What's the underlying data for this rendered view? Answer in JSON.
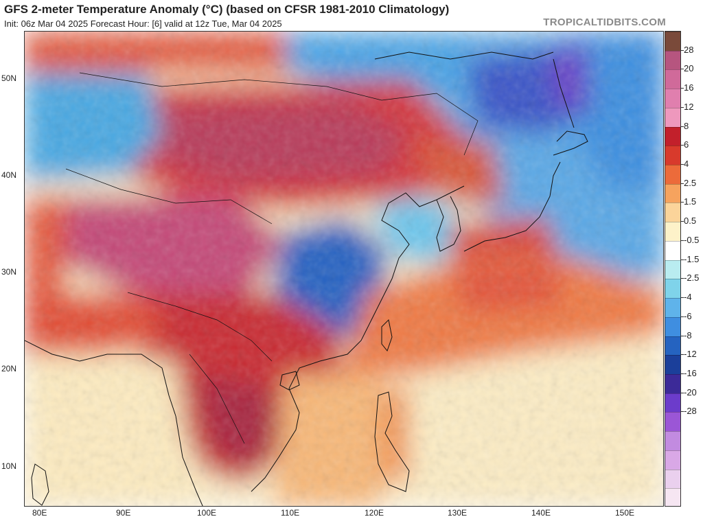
{
  "header": {
    "title": "GFS 2-meter Temperature Anomaly (°C) (based on CFSR 1981-2010 Climatology)",
    "subtitle": "Init: 06z Mar 04 2025   Forecast Hour: [6]   valid at 12z Tue, Mar 04 2025",
    "brand": "TROPICALTIDBITS.COM"
  },
  "map": {
    "latitude_labels": [
      "50N",
      "40N",
      "30N",
      "20N",
      "10N"
    ],
    "longitude_labels": [
      "80E",
      "90E",
      "100E",
      "110E",
      "120E",
      "130E",
      "140E",
      "150E"
    ]
  },
  "colorbar": {
    "labels": [
      "28",
      "20",
      "16",
      "12",
      "8",
      "6",
      "4",
      "2.5",
      "1.5",
      "0.5",
      "-0.5",
      "-1.5",
      "-2.5",
      "-4",
      "-6",
      "-8",
      "-12",
      "-16",
      "-20",
      "-28"
    ],
    "colors": [
      "#7a4a3a",
      "#b6557f",
      "#d06a9a",
      "#e07fae",
      "#ee98bd",
      "#c2202b",
      "#d83a2c",
      "#ec6b3a",
      "#f6a35e",
      "#fbd49a",
      "#fdf2c9",
      "#ffffff",
      "#b9ecf0",
      "#7fd3ea",
      "#5fb3ea",
      "#3f8ee0",
      "#2563c0",
      "#1b3f9a",
      "#3c2a98",
      "#6c3ccb",
      "#9b56d6",
      "#c28be0",
      "#d9a8e6",
      "#ead0ee",
      "#f6e6f2"
    ]
  }
}
